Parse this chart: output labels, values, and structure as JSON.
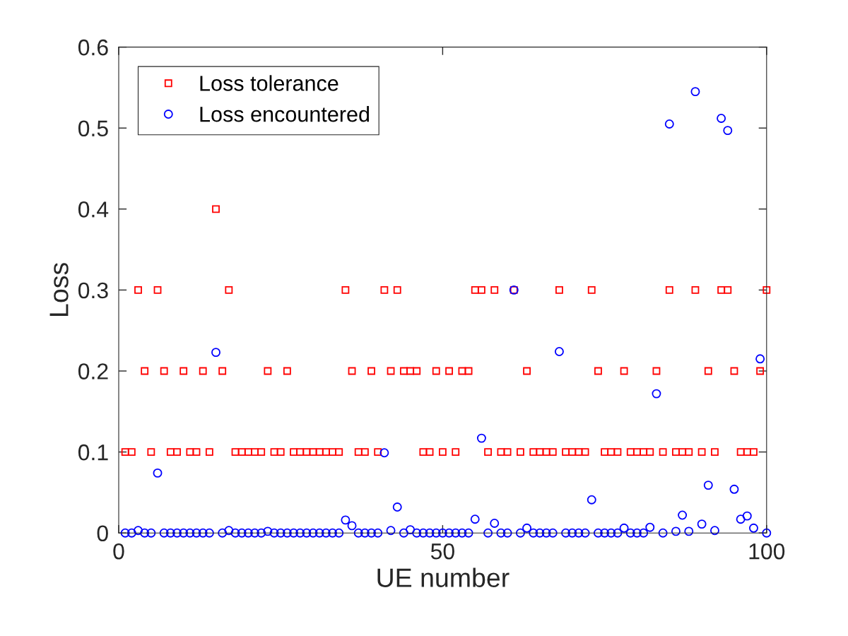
{
  "chart_data": {
    "type": "scatter",
    "xlabel": "UE number",
    "ylabel": "Loss",
    "x": [
      1,
      2,
      3,
      4,
      5,
      6,
      7,
      8,
      9,
      10,
      11,
      12,
      13,
      14,
      15,
      16,
      17,
      18,
      19,
      20,
      21,
      22,
      23,
      24,
      25,
      26,
      27,
      28,
      29,
      30,
      31,
      32,
      33,
      34,
      35,
      36,
      37,
      38,
      39,
      40,
      41,
      42,
      43,
      44,
      45,
      46,
      47,
      48,
      49,
      50,
      51,
      52,
      53,
      54,
      55,
      56,
      57,
      58,
      59,
      60,
      61,
      62,
      63,
      64,
      65,
      66,
      67,
      68,
      69,
      70,
      71,
      72,
      73,
      74,
      75,
      76,
      77,
      78,
      79,
      80,
      81,
      82,
      83,
      84,
      85,
      86,
      87,
      88,
      89,
      90,
      91,
      92,
      93,
      94,
      95,
      96,
      97,
      98,
      99,
      100
    ],
    "series": [
      {
        "name": "Loss tolerance",
        "color": "#ff0000",
        "marker": "square",
        "values": [
          0.1,
          0.1,
          0.3,
          0.2,
          0.1,
          0.3,
          0.2,
          0.1,
          0.1,
          0.2,
          0.1,
          0.1,
          0.2,
          0.1,
          0.4,
          0.2,
          0.3,
          0.1,
          0.1,
          0.1,
          0.1,
          0.1,
          0.2,
          0.1,
          0.1,
          0.2,
          0.1,
          0.1,
          0.1,
          0.1,
          0.1,
          0.1,
          0.1,
          0.1,
          0.3,
          0.2,
          0.1,
          0.1,
          0.2,
          0.1,
          0.3,
          0.2,
          0.3,
          0.2,
          0.2,
          0.2,
          0.1,
          0.1,
          0.2,
          0.1,
          0.2,
          0.1,
          0.2,
          0.2,
          0.3,
          0.3,
          0.1,
          0.3,
          0.1,
          0.1,
          0.3,
          0.1,
          0.2,
          0.1,
          0.1,
          0.1,
          0.1,
          0.3,
          0.1,
          0.1,
          0.1,
          0.1,
          0.3,
          0.2,
          0.1,
          0.1,
          0.1,
          0.2,
          0.1,
          0.1,
          0.1,
          0.1,
          0.2,
          0.1,
          0.3,
          0.1,
          0.1,
          0.1,
          0.3,
          0.1,
          0.2,
          0.1,
          0.3,
          0.3,
          0.2,
          0.1,
          0.1,
          0.1,
          0.2,
          0.3
        ]
      },
      {
        "name": "Loss encountered",
        "color": "#0000ff",
        "marker": "circle",
        "values": [
          0,
          0,
          0.003,
          0,
          0,
          0.074,
          0,
          0,
          0,
          0,
          0,
          0,
          0,
          0,
          0.223,
          0,
          0.003,
          0,
          0,
          0,
          0,
          0,
          0.002,
          0,
          0,
          0,
          0,
          0,
          0,
          0,
          0,
          0,
          0,
          0,
          0.016,
          0.009,
          0,
          0,
          0,
          0,
          0.099,
          0.003,
          0.032,
          0,
          0.004,
          0,
          0,
          0,
          0,
          0,
          0,
          0,
          0,
          0,
          0.017,
          0.117,
          0,
          0.012,
          0,
          0,
          0.3,
          0,
          0.006,
          0,
          0,
          0,
          0,
          0.224,
          0,
          0,
          0,
          0,
          0.041,
          0,
          0,
          0,
          0,
          0.006,
          0,
          0,
          0,
          0.007,
          0.172,
          0,
          0.505,
          0.002,
          0.022,
          0.002,
          0.545,
          0.011,
          0.059,
          0.003,
          0.512,
          0.497,
          0.054,
          0.017,
          0.021,
          0.006,
          0.215,
          0
        ]
      }
    ],
    "xlim": [
      0,
      100
    ],
    "xticks": [
      0,
      50,
      100
    ],
    "ylim": [
      0,
      0.6
    ],
    "yticks": [
      0,
      0.1,
      0.2,
      0.3,
      0.4,
      0.5,
      0.6
    ],
    "grid": false,
    "legend": "top left"
  }
}
